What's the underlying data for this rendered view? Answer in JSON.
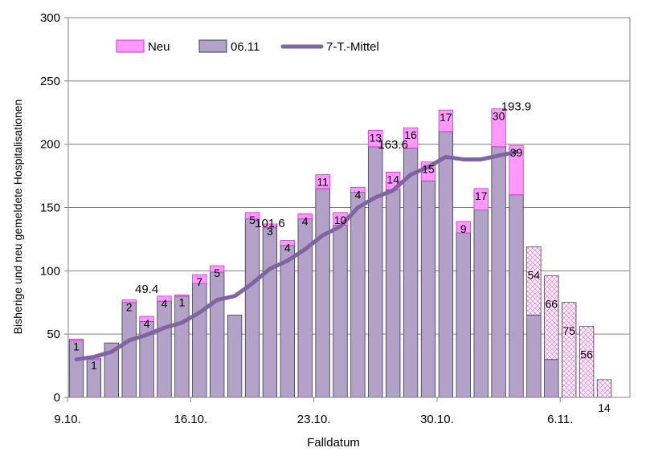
{
  "chart_data": {
    "type": "bar",
    "title": "",
    "xlabel": "Falldatum",
    "ylabel": "Bisherige  und  neu gemeldete  Hospitalisationen",
    "ylim": [
      0,
      300
    ],
    "yticks": [
      "0",
      "50",
      "100",
      "150",
      "200",
      "250",
      "300"
    ],
    "xtick_labels": [
      {
        "label": "9.10.",
        "day_index": 0
      },
      {
        "label": "16.10.",
        "day_index": 7
      },
      {
        "label": "23.10.",
        "day_index": 14
      },
      {
        "label": "30.10.",
        "day_index": 21
      },
      {
        "label": "6.11.",
        "day_index": 28
      }
    ],
    "legend": {
      "position": "top-left",
      "items": [
        "Neu",
        "06.11",
        "7-T.-Mittel"
      ]
    },
    "colors": {
      "base": "#b3a2c7",
      "base_stroke": "#3d3550",
      "neu": "#ff99ff",
      "neu_stroke": "#cc33cc",
      "hatch": "#ff7fe0",
      "line": "#8064a2",
      "grid": "#808080"
    },
    "days": [
      {
        "base": 45,
        "neu": 1,
        "label": "1"
      },
      {
        "base": 30,
        "neu": 1,
        "label": "1"
      },
      {
        "base": 43,
        "neu": 0,
        "label": ""
      },
      {
        "base": 75,
        "neu": 2,
        "label": "2"
      },
      {
        "base": 60,
        "neu": 4,
        "label": "4"
      },
      {
        "base": 76,
        "neu": 4,
        "label": "4"
      },
      {
        "base": 80,
        "neu": 1,
        "label": "1"
      },
      {
        "base": 90,
        "neu": 7,
        "label": "7"
      },
      {
        "base": 99,
        "neu": 5,
        "label": "5"
      },
      {
        "base": 65,
        "neu": 0,
        "label": ""
      },
      {
        "base": 141,
        "neu": 5,
        "label": "5"
      },
      {
        "base": 134,
        "neu": 3,
        "label": "3"
      },
      {
        "base": 120,
        "neu": 4,
        "label": "4"
      },
      {
        "base": 141,
        "neu": 4,
        "label": "4"
      },
      {
        "base": 165,
        "neu": 11,
        "label": "11"
      },
      {
        "base": 136,
        "neu": 10,
        "label": "10"
      },
      {
        "base": 162,
        "neu": 4,
        "label": "4"
      },
      {
        "base": 198,
        "neu": 13,
        "label": "13"
      },
      {
        "base": 164,
        "neu": 14,
        "label": "14"
      },
      {
        "base": 197,
        "neu": 16,
        "label": "16"
      },
      {
        "base": 171,
        "neu": 15,
        "label": "15"
      },
      {
        "base": 210,
        "neu": 17,
        "label": "17"
      },
      {
        "base": 130,
        "neu": 9,
        "label": "9"
      },
      {
        "base": 148,
        "neu": 17,
        "label": "17"
      },
      {
        "base": 198,
        "neu": 30,
        "label": "30"
      },
      {
        "base": 160,
        "neu": 39,
        "label": "39"
      },
      {
        "base": 65,
        "neu": 54,
        "label": "54",
        "hatched": true
      },
      {
        "base": 30,
        "neu": 66,
        "label": "66",
        "hatched": true
      },
      {
        "base": 0,
        "neu": 75,
        "label": "75",
        "hatched": true
      },
      {
        "base": 0,
        "neu": 56,
        "label": "56",
        "hatched": true
      },
      {
        "base": 0,
        "neu": 14,
        "label": "14",
        "hatched": true
      }
    ],
    "moving_average": [
      30,
      32,
      36,
      45,
      49.4,
      55,
      59,
      67,
      77,
      80,
      90,
      101.6,
      108,
      117,
      128,
      135,
      150,
      158,
      163.6,
      176,
      182,
      190,
      188,
      188,
      191,
      193.9
    ],
    "annotations": [
      {
        "text": "49.4",
        "day_index": 4,
        "value": 49.4
      },
      {
        "text": "101.6",
        "day_index": 11,
        "value": 101.6
      },
      {
        "text": "163.6",
        "day_index": 18,
        "value": 163.6
      },
      {
        "text": "193.9",
        "day_index": 25,
        "value": 193.9
      }
    ]
  }
}
